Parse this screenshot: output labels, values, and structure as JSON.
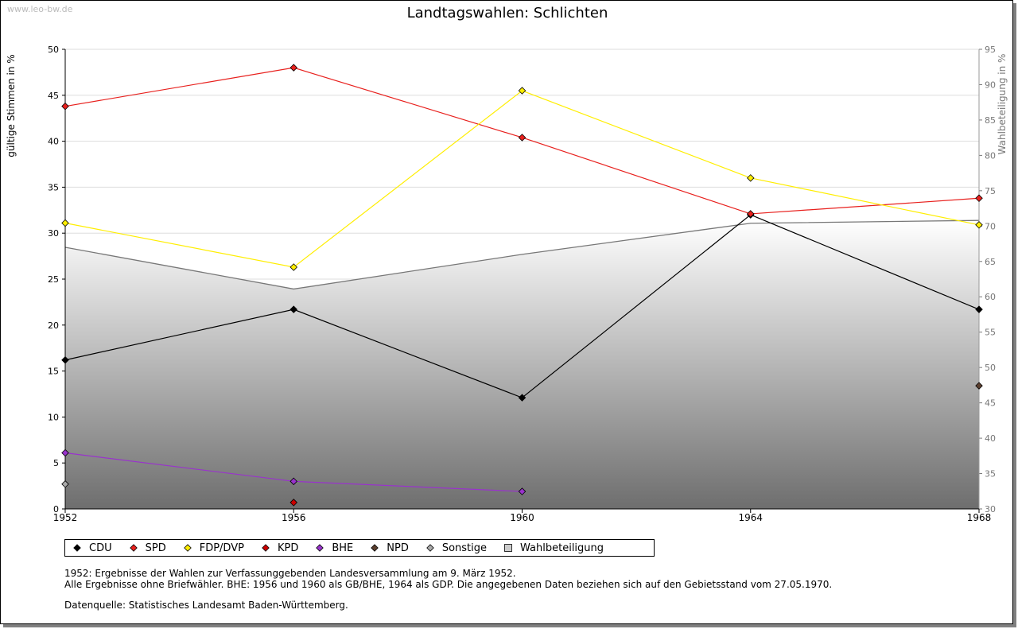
{
  "watermark": "www.leo-bw.de",
  "chart_data": {
    "type": "line",
    "title": "Landtagswahlen: Schlichten",
    "ylabel": "gültige Stimmen in %",
    "y2label": "Wahlbeteiligung in %",
    "categories": [
      "1952",
      "1956",
      "1960",
      "1964",
      "1968"
    ],
    "ylim": [
      0,
      50
    ],
    "yticks": [
      0,
      5,
      10,
      15,
      20,
      25,
      30,
      35,
      40,
      45,
      50
    ],
    "y2lim": [
      30,
      95
    ],
    "y2ticks": [
      30,
      35,
      40,
      45,
      50,
      55,
      60,
      65,
      70,
      75,
      80,
      85,
      90,
      95
    ],
    "series": [
      {
        "name": "CDU",
        "color": "#000000",
        "values": [
          16.2,
          21.7,
          12.1,
          32.0,
          21.7
        ]
      },
      {
        "name": "SPD",
        "color": "#e8201d",
        "values": [
          43.8,
          48.0,
          40.4,
          32.1,
          33.8
        ]
      },
      {
        "name": "FDP/DVP",
        "color": "#ffee00",
        "values": [
          31.1,
          26.3,
          45.5,
          36.0,
          30.9
        ]
      },
      {
        "name": "KPD",
        "color": "#cc0000",
        "values": [
          null,
          0.7,
          null,
          null,
          null
        ]
      },
      {
        "name": "BHE",
        "color": "#9933cc",
        "values": [
          6.1,
          3.0,
          1.9,
          null,
          null
        ]
      },
      {
        "name": "NPD",
        "color": "#5c4030",
        "values": [
          null,
          null,
          null,
          null,
          13.4
        ]
      },
      {
        "name": "Sonstige",
        "color": "#aaaaaa",
        "values": [
          2.7,
          null,
          null,
          null,
          null
        ]
      }
    ],
    "turnout": {
      "name": "Wahlbeteiligung",
      "values": [
        67.0,
        61.1,
        66.0,
        70.4,
        70.8
      ]
    }
  },
  "notes": [
    "1952: Ergebnisse der Wahlen zur Verfassunggebenden Landesversammlung am 9. März 1952.",
    "Alle Ergebnisse ohne Briefwähler. BHE: 1956 und 1960 als GB/BHE, 1964 als GDP. Die angegebenen Daten beziehen sich auf den Gebietsstand vom 27.05.1970."
  ],
  "source": "Datenquelle: Statistisches Landesamt Baden-Württemberg."
}
